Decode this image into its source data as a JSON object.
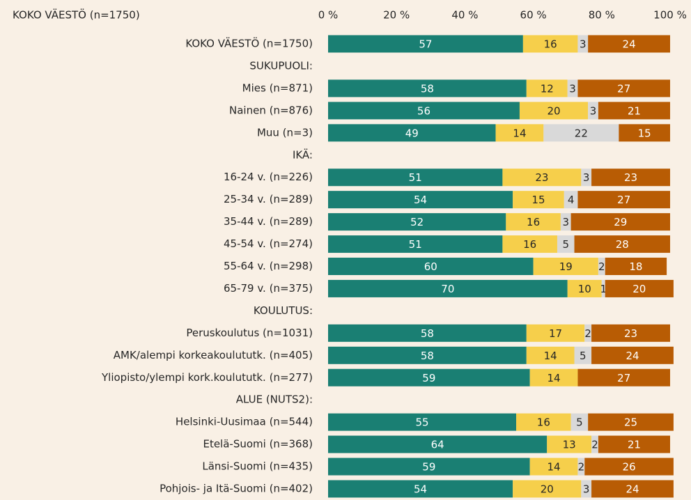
{
  "chart_data": {
    "type": "stacked-bar-horizontal",
    "title": "KOKO VÄESTÖ (n=1750)",
    "categories": [
      "KOKO VÄESTÖ (n=1750)",
      "SUKUPUOLI:",
      "Mies (n=871)",
      "Nainen (n=876)",
      "Muu (n=3)",
      "IKÄ:",
      "16-24 v. (n=226)",
      "25-34 v. (n=289)",
      "35-44 v. (n=289)",
      "45-54 v. (n=274)",
      "55-64 v. (n=298)",
      "65-79 v. (n=375)",
      "KOULUTUS:",
      "Peruskoulutus (n=1031)",
      "AMK/alempi korkeakoulututk. (n=405)",
      "Yliopisto/ylempi kork.koulututk. (n=277)",
      "ALUE (NUTS2):",
      "Helsinki-Uusimaa (n=544)",
      "Etelä-Suomi (n=368)",
      "Länsi-Suomi (n=435)",
      "Pohjois- ja Itä-Suomi (n=402)"
    ],
    "series": [
      {
        "color": "#1a7f73",
        "values": [
          57,
          null,
          58,
          56,
          49,
          null,
          51,
          54,
          52,
          51,
          60,
          70,
          null,
          58,
          58,
          59,
          null,
          55,
          64,
          59,
          54
        ]
      },
      {
        "color": "#f6cf4b",
        "values": [
          16,
          null,
          12,
          20,
          14,
          null,
          23,
          15,
          16,
          16,
          19,
          10,
          null,
          17,
          14,
          14,
          null,
          16,
          13,
          14,
          20
        ]
      },
      {
        "color": "#d9d9d9",
        "values": [
          3,
          null,
          3,
          3,
          22,
          null,
          3,
          4,
          3,
          5,
          2,
          1,
          null,
          2,
          5,
          null,
          null,
          5,
          2,
          2,
          3
        ]
      },
      {
        "color": "#b85c04",
        "values": [
          24,
          null,
          27,
          21,
          15,
          null,
          23,
          27,
          29,
          28,
          18,
          20,
          null,
          23,
          24,
          27,
          null,
          25,
          21,
          26,
          24
        ]
      }
    ],
    "xlim": [
      0,
      100
    ],
    "xticks": [
      {
        "value": 0,
        "label": "0 %"
      },
      {
        "value": 20,
        "label": "20 %"
      },
      {
        "value": 40,
        "label": "40 %"
      },
      {
        "value": 60,
        "label": "60 %"
      },
      {
        "value": 80,
        "label": "80 %"
      },
      {
        "value": 100,
        "label": "100 %"
      }
    ],
    "grid": false
  }
}
